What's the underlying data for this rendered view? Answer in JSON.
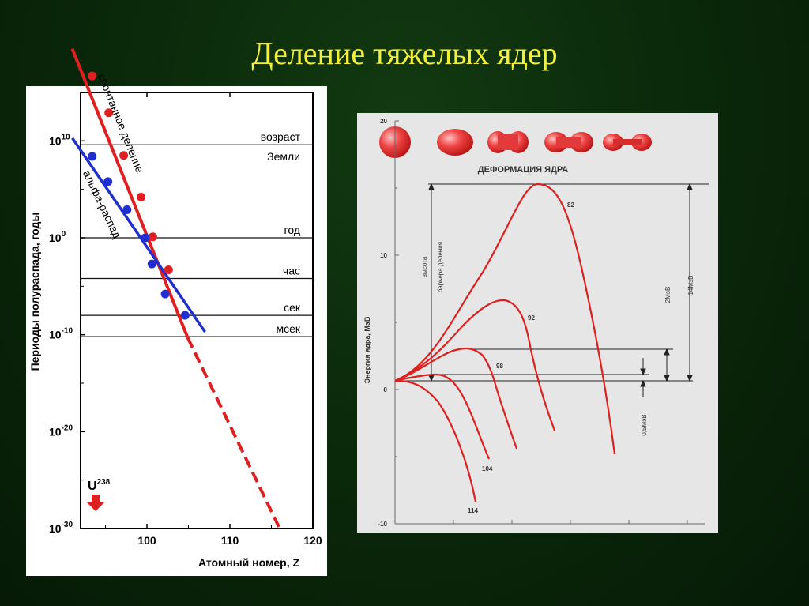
{
  "slide": {
    "title": "Деление тяжелых ядер"
  },
  "chart_data": [
    {
      "type": "line",
      "xlabel": "Атомный номер, Z",
      "ylabel": "Периоды полураспада, годы",
      "xlim": [
        92,
        120
      ],
      "ylim_log10": [
        -30,
        15
      ],
      "x_ticks": [
        {
          "value": 100,
          "label": "100"
        },
        {
          "value": 110,
          "label": "110"
        },
        {
          "value": 120,
          "label": "120"
        }
      ],
      "y_ticks": [
        {
          "value": 10,
          "base": "10",
          "exp": "10"
        },
        {
          "value": 0,
          "base": "10",
          "exp": "0"
        },
        {
          "value": -10,
          "base": "10",
          "exp": "-10"
        },
        {
          "value": -20,
          "base": "10",
          "exp": "-20"
        },
        {
          "value": -30,
          "base": "10",
          "exp": "-30"
        }
      ],
      "reference_lines": [
        {
          "log10": 9.6,
          "label": "возраст",
          "label2": "Земли"
        },
        {
          "log10": 0,
          "label": "год"
        },
        {
          "log10": -4.2,
          "label": "час"
        },
        {
          "log10": -8,
          "label": "сек"
        },
        {
          "log10": -10.2,
          "label": "мсек"
        }
      ],
      "series": [
        {
          "name": "спонтанное деление",
          "color": "#e02020",
          "line_solid": [
            [
              91,
              19.5
            ],
            [
              104.9,
              -10.3
            ]
          ],
          "line_dashed": [
            [
              104.9,
              -10.3
            ],
            [
              116,
              -30
            ]
          ],
          "points": [
            [
              93.4,
              16.7
            ],
            [
              95.4,
              12.9
            ],
            [
              97.2,
              8.5
            ],
            [
              99.3,
              4.2
            ],
            [
              100.7,
              0.1
            ],
            [
              102.6,
              -3.3
            ]
          ]
        },
        {
          "name": "альфа-распад",
          "color": "#2030d0",
          "line_solid": [
            [
              91,
              10.3
            ],
            [
              107,
              -9.7
            ]
          ],
          "points": [
            [
              93.4,
              8.4
            ],
            [
              95.3,
              5.8
            ],
            [
              97.6,
              2.9
            ],
            [
              99.8,
              0
            ],
            [
              100.6,
              -2.7
            ],
            [
              102.2,
              -5.8
            ],
            [
              104.6,
              -8.0
            ]
          ]
        }
      ],
      "annotation": {
        "label": "U",
        "sup": "238",
        "x": 92
      }
    },
    {
      "type": "line",
      "title": "ДЕФОРМАЦИЯ ЯДРА",
      "ylabel": "Энергия ядра, МэВ",
      "ylim": [
        -10,
        20
      ],
      "y_ticks": [
        20,
        10,
        0,
        -10
      ],
      "annotations": [
        "высота",
        "барьера деления",
        "0,5МэВ",
        "2МэВ",
        "14МэВ"
      ],
      "series": [
        {
          "name": "82",
          "color": "#dd2020",
          "barrier_mev": 14,
          "end_mev": -5
        },
        {
          "name": "92",
          "color": "#dd2020",
          "barrier_mev": 5.8,
          "end_mev": -3.5
        },
        {
          "name": "98",
          "color": "#dd2020",
          "barrier_mev": 2.2,
          "end_mev": -4.5
        },
        {
          "name": "104",
          "color": "#dd2020",
          "barrier_mev": 0.5,
          "end_mev": -6
        },
        {
          "name": "114",
          "color": "#dd2020",
          "barrier_mev": 0,
          "end_mev": -8.5
        }
      ]
    }
  ]
}
